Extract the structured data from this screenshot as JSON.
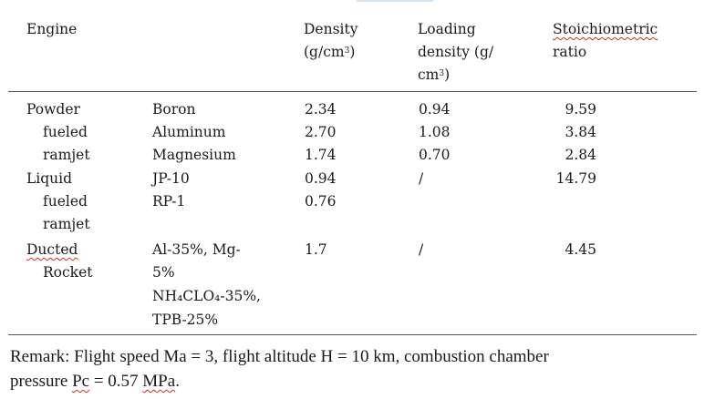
{
  "table": {
    "headers": {
      "engine": "Engine",
      "density_l1": "Density",
      "density_l2a": "(g/cm",
      "density_sup": "3",
      "density_l2b": ")",
      "loading_l1": "Loading",
      "loading_l2": "density (g/",
      "loading_l3a": "cm",
      "loading_sup": "3",
      "loading_l3b": ")",
      "stoich_l1": "Stoichiometric",
      "stoich_l2": "ratio"
    },
    "groups": [
      {
        "engine_lines": [
          "Powder",
          "fueled",
          "ramjet"
        ],
        "rows": [
          {
            "fuel": "Boron",
            "density": "2.34",
            "loading": "0.94",
            "ratio": "9.59"
          },
          {
            "fuel": "Aluminum",
            "density": "2.70",
            "loading": "1.08",
            "ratio": "3.84"
          },
          {
            "fuel": "Magnesium",
            "density": "1.74",
            "loading": "0.70",
            "ratio": "2.84"
          }
        ]
      },
      {
        "engine_lines": [
          "Liquid",
          "fueled",
          "ramjet"
        ],
        "rows": [
          {
            "fuel": "JP-10",
            "density": "0.94",
            "loading": "/",
            "ratio": "14.79"
          },
          {
            "fuel": "RP-1",
            "density": "0.76",
            "loading": "",
            "ratio": ""
          }
        ]
      },
      {
        "engine_lines": [
          "Ducted",
          "Rocket"
        ],
        "fuel_lines": [
          "Al-35%, Mg-",
          "5%",
          "NH₄CLO₄-35%,",
          "TPB-25%"
        ],
        "density": "1.7",
        "loading": "/",
        "ratio": "4.45"
      }
    ]
  },
  "remark": {
    "line1": "Remark: Flight speed Ma = 3, flight altitude H = 10 km, combustion chamber",
    "line2_pre": "pressure ",
    "line2_pc": "Pc",
    "line2_mid": " = 0.57 ",
    "line2_mpa": "MPa",
    "line2_end": "."
  }
}
